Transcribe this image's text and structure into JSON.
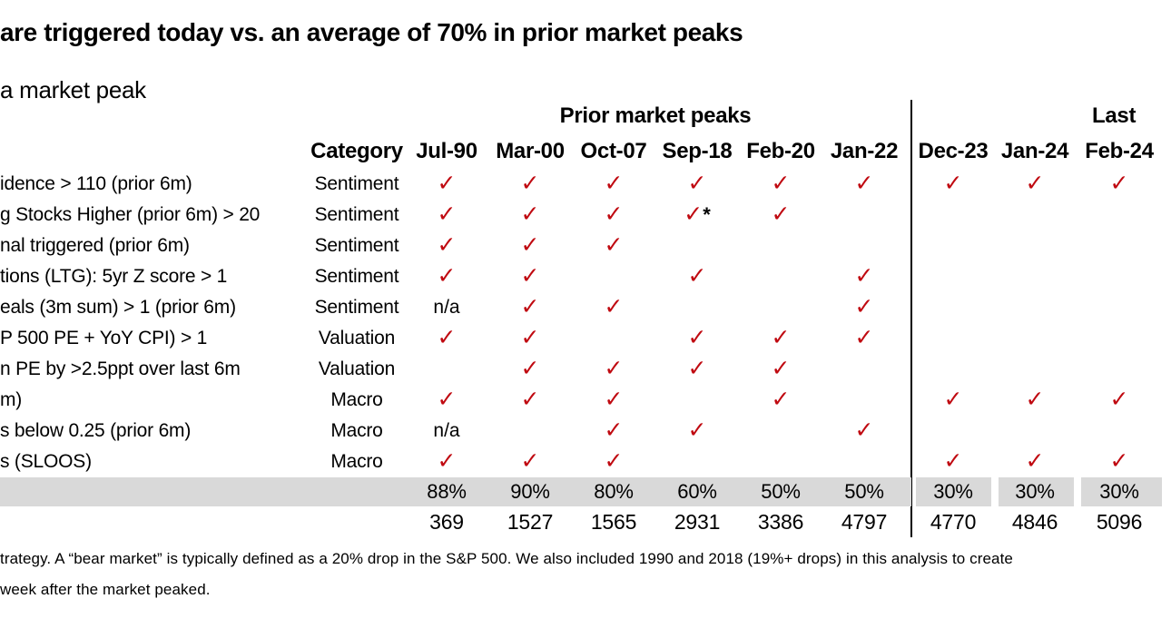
{
  "title": "are triggered today vs. an average of 70% in prior market peaks",
  "subtitle": "a market peak",
  "table": {
    "group_headers": {
      "prior": "Prior market peaks",
      "last": "Last"
    },
    "columns": [
      "Category",
      "Jul-90",
      "Mar-00",
      "Oct-07",
      "Sep-18",
      "Feb-20",
      "Jan-22",
      "Dec-23",
      "Jan-24",
      "Feb-24"
    ],
    "rows": [
      {
        "label": "idence > 110 (prior 6m)",
        "category": "Sentiment",
        "cells": [
          "✓",
          "✓",
          "✓",
          "✓",
          "✓",
          "✓",
          "✓",
          "✓",
          "✓"
        ]
      },
      {
        "label": "g Stocks Higher (prior 6m) > 20",
        "category": "Sentiment",
        "cells": [
          "✓",
          "✓",
          "✓",
          "✓*",
          "✓",
          "",
          "",
          "",
          ""
        ]
      },
      {
        "label": "nal triggered (prior 6m)",
        "category": "Sentiment",
        "cells": [
          "✓",
          "✓",
          "✓",
          "",
          "",
          "",
          "",
          "",
          ""
        ]
      },
      {
        "label": "tions (LTG): 5yr Z score > 1",
        "category": "Sentiment",
        "cells": [
          "✓",
          "✓",
          "",
          "✓",
          "",
          "✓",
          "",
          "",
          ""
        ]
      },
      {
        "label": "eals (3m sum) > 1 (prior 6m)",
        "category": "Sentiment",
        "cells": [
          "n/a",
          "✓",
          "✓",
          "",
          "",
          "✓",
          "",
          "",
          ""
        ]
      },
      {
        "label": "P 500 PE + YoY CPI) > 1",
        "category": "Valuation",
        "cells": [
          "✓",
          "✓",
          "",
          "✓",
          "✓",
          "✓",
          "",
          "",
          ""
        ]
      },
      {
        "label": "n PE by >2.5ppt over last 6m",
        "category": "Valuation",
        "cells": [
          "",
          "✓",
          "✓",
          "✓",
          "✓",
          "",
          "",
          "",
          ""
        ]
      },
      {
        "label": "m)",
        "category": "Macro",
        "cells": [
          "✓",
          "✓",
          "✓",
          "",
          "✓",
          "",
          "✓",
          "✓",
          "✓"
        ]
      },
      {
        "label": "s below 0.25 (prior 6m)",
        "category": "Macro",
        "cells": [
          "n/a",
          "",
          "✓",
          "✓",
          "",
          "✓",
          "",
          "",
          ""
        ]
      },
      {
        "label": "s (SLOOS)",
        "category": "Macro",
        "cells": [
          "✓",
          "✓",
          "✓",
          "",
          "",
          "",
          "✓",
          "✓",
          "✓"
        ]
      }
    ],
    "percent_row": [
      "88%",
      "90%",
      "80%",
      "60%",
      "50%",
      "50%",
      "30%",
      "30%",
      "30%"
    ],
    "index_row": [
      "369",
      "1527",
      "1565",
      "2931",
      "3386",
      "4797",
      "4770",
      "4846",
      "5096"
    ]
  },
  "footnote_line1": "trategy. A “bear market” is typically defined as a 20% drop in the S&P 500. We also included 1990 and 2018 (19%+ drops) in this analysis to create",
  "footnote_line2": "week after the market peaked.",
  "colors": {
    "check_red": "#c00a11",
    "band_gray": "#d9d9d9"
  }
}
